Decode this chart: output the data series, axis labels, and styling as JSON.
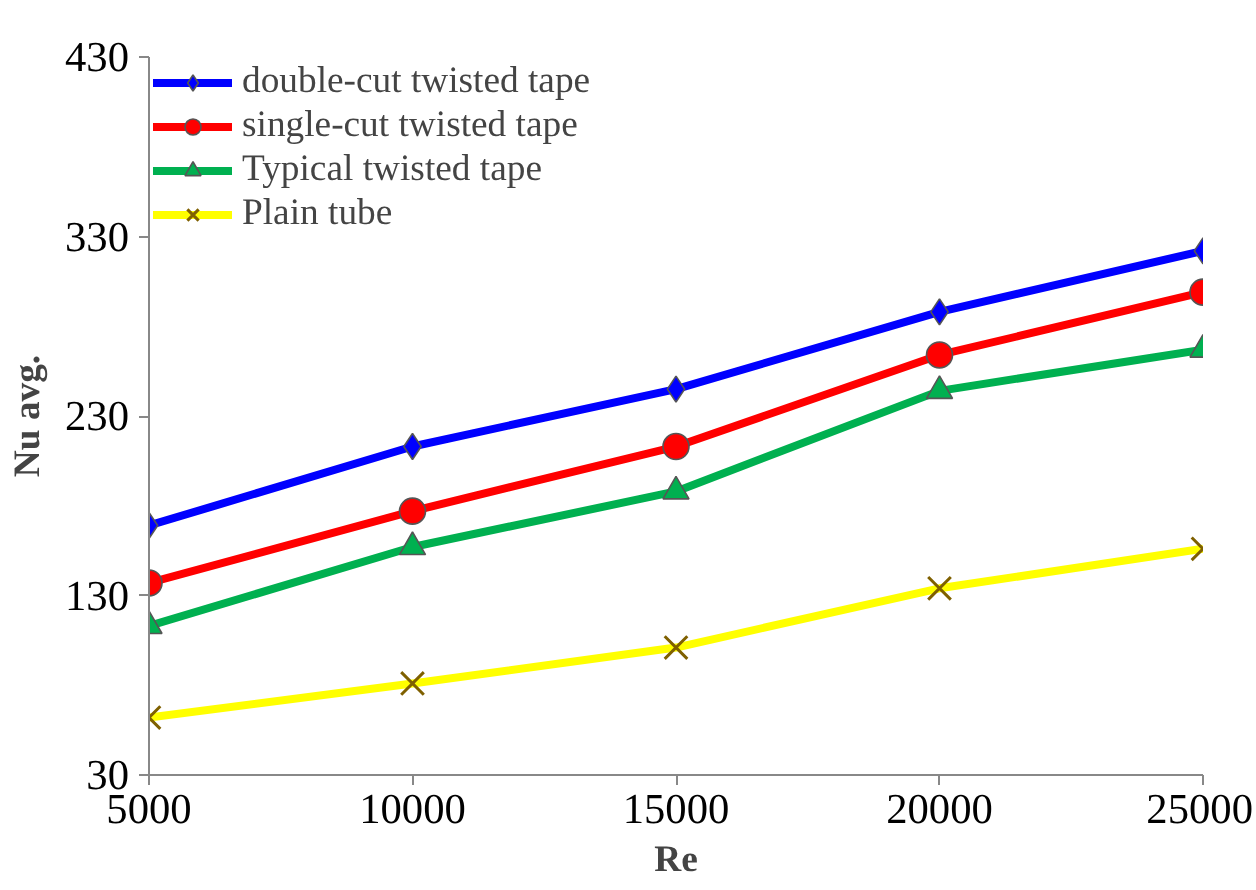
{
  "chart_data": {
    "type": "line",
    "xlabel": "Re",
    "ylabel": "Nu avg.",
    "x": [
      5000,
      10000,
      15000,
      20000,
      25000
    ],
    "xlim": [
      5000,
      25000
    ],
    "xticks": [
      5000,
      10000,
      15000,
      20000,
      25000
    ],
    "ylim": [
      30,
      430
    ],
    "yticks": [
      30,
      130,
      230,
      330,
      430
    ],
    "grid": false,
    "legend": "top left",
    "line_style": "solid",
    "series": [
      {
        "name": "double-cut twisted tape",
        "color": "#0000ff",
        "marker": "diamond",
        "values": [
          169,
          213,
          245,
          288,
          322
        ]
      },
      {
        "name": "single-cut twisted tape",
        "color": "#ff0000",
        "marker": "circle",
        "values": [
          137,
          177,
          213,
          264,
          299
        ]
      },
      {
        "name": "Typical twisted tape",
        "color": "#00b050",
        "marker": "triangle",
        "values": [
          113,
          157,
          188,
          244,
          267
        ]
      },
      {
        "name": "Plain tube",
        "color": "#ffff00",
        "marker": "cross",
        "values": [
          62,
          81,
          101,
          134,
          156
        ]
      }
    ]
  }
}
